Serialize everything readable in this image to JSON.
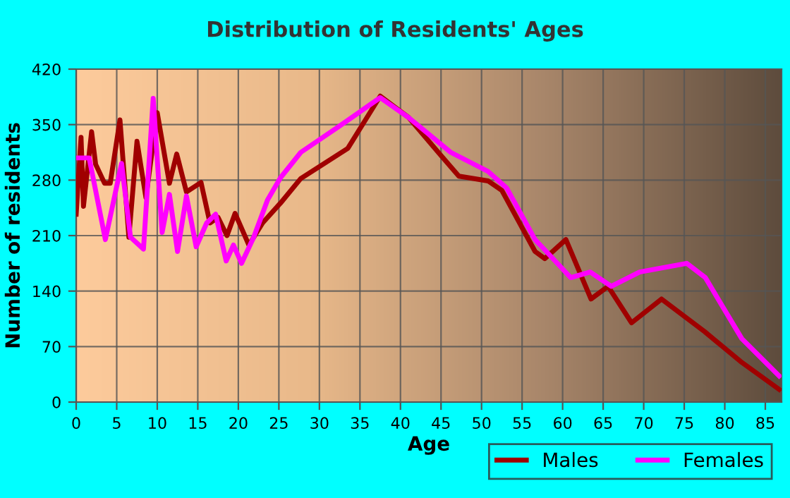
{
  "chart_data": {
    "type": "line",
    "title": "Distribution of Residents' Ages",
    "xlabel": "Age",
    "ylabel": "Number of residents",
    "xlim": [
      0,
      87
    ],
    "xticks": [
      0,
      5,
      10,
      15,
      20,
      25,
      30,
      35,
      40,
      45,
      50,
      55,
      60,
      65,
      70,
      75,
      80,
      85
    ],
    "ylim": [
      0,
      420
    ],
    "yticks": [
      0,
      70,
      140,
      210,
      280,
      350,
      420
    ],
    "grid": true,
    "legend": "bottom",
    "marker": "none",
    "line_style": "solid",
    "series": [
      {
        "name": "Males",
        "color": "#a00000",
        "x": [
          0,
          0.6,
          0.9,
          1.9,
          2.4,
          3.5,
          4.2,
          5.4,
          6.5,
          7.5,
          8.6,
          10,
          11.5,
          12.4,
          13.6,
          15.4,
          16.5,
          17.5,
          18.6,
          19.6,
          21.3,
          23,
          25.2,
          27.7,
          33.5,
          37.5,
          41,
          45,
          47.2,
          50.8,
          52.5,
          56.6,
          57.8,
          60.4,
          63.5,
          65.6,
          68.5,
          72.2,
          77.5,
          82.1,
          86.7
        ],
        "values": [
          237,
          334,
          247,
          341,
          300,
          276,
          276,
          356,
          208,
          329,
          258,
          365,
          276,
          313,
          265,
          277,
          226,
          233,
          210,
          238,
          198,
          226,
          251,
          282,
          320,
          386,
          359,
          311,
          285,
          279,
          267,
          190,
          181,
          205,
          130,
          146,
          100,
          130,
          89,
          50,
          16
        ]
      },
      {
        "name": "Females",
        "color": "#ff00ff",
        "x": [
          0,
          1.6,
          3.6,
          5.6,
          6.7,
          8.3,
          9.5,
          10.6,
          11.5,
          12.5,
          13.6,
          14.8,
          16.1,
          17.2,
          18.5,
          19.4,
          20.4,
          21.9,
          23.6,
          25.2,
          27.7,
          32.3,
          37.5,
          41,
          46.2,
          50.8,
          53.1,
          56.6,
          61,
          63.4,
          66,
          69.5,
          75.3,
          77.6,
          82.1,
          86.7
        ],
        "values": [
          308,
          308,
          205,
          301,
          208,
          193,
          383,
          214,
          262,
          190,
          260,
          196,
          226,
          237,
          178,
          198,
          175,
          208,
          255,
          283,
          315,
          347,
          384,
          359,
          315,
          291,
          270,
          205,
          157,
          164,
          146,
          164,
          175,
          157,
          80,
          33
        ]
      }
    ]
  }
}
